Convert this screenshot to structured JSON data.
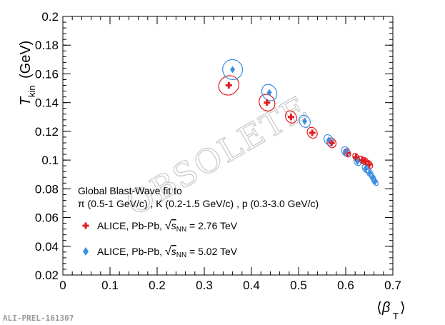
{
  "chart_data": {
    "type": "scatter",
    "xlabel": "⟨β_T⟩",
    "ylabel": "T_kin (GeV)",
    "xlim": [
      0,
      0.7
    ],
    "ylim": [
      0.02,
      0.2
    ],
    "x_ticks": [
      0,
      0.1,
      0.2,
      0.3,
      0.4,
      0.5,
      0.6,
      0.7
    ],
    "y_ticks": [
      0.02,
      0.04,
      0.06,
      0.08,
      0.1,
      0.12,
      0.14,
      0.16,
      0.18,
      0.2
    ],
    "x_tick_labels": [
      "0",
      "0.1",
      "0.2",
      "0.3",
      "0.4",
      "0.5",
      "0.6",
      "0.7"
    ],
    "y_tick_labels": [
      "0.02",
      "0.04",
      "0.06",
      "0.08",
      "0.1",
      "0.12",
      "0.14",
      "0.16",
      "0.18",
      "0.2"
    ],
    "legend": {
      "title_line1": "Global Blast-Wave fit to",
      "title_line2": "π (0.5-1 GeV/c) , K (0.2-1.5 GeV/c) , p (0.3-3.0 GeV/c)",
      "entries": [
        "ALICE, Pb-Pb, √sNN = 2.76 TeV",
        "ALICE, Pb-Pb, √sNN = 5.02 TeV"
      ]
    },
    "annotations": {
      "watermark": "OBSOLETE",
      "preliminary_id": "ALI-PREL-161307"
    },
    "series": [
      {
        "name": "ALICE, Pb-Pb, √sNN = 2.76 TeV",
        "color": "#e31a1c",
        "marker": "cross",
        "points": [
          {
            "x": 0.352,
            "y": 0.152,
            "ex": 0.022,
            "ey": 0.0065
          },
          {
            "x": 0.433,
            "y": 0.14,
            "ex": 0.016,
            "ey": 0.006
          },
          {
            "x": 0.484,
            "y": 0.13,
            "ex": 0.011,
            "ey": 0.0045
          },
          {
            "x": 0.529,
            "y": 0.119,
            "ex": 0.01,
            "ey": 0.004
          },
          {
            "x": 0.57,
            "y": 0.112,
            "ex": 0.009,
            "ey": 0.0035
          },
          {
            "x": 0.603,
            "y": 0.105,
            "ex": 0.007,
            "ey": 0.003
          },
          {
            "x": 0.622,
            "y": 0.102,
            "ex": 0.006,
            "ey": 0.003
          },
          {
            "x": 0.635,
            "y": 0.1,
            "ex": 0.006,
            "ey": 0.003
          },
          {
            "x": 0.642,
            "y": 0.099,
            "ex": 0.006,
            "ey": 0.003
          },
          {
            "x": 0.65,
            "y": 0.097,
            "ex": 0.006,
            "ey": 0.003
          }
        ]
      },
      {
        "name": "ALICE, Pb-Pb, √sNN = 5.02 TeV",
        "color": "#3a8fe0",
        "marker": "diamond",
        "points": [
          {
            "x": 0.36,
            "y": 0.163,
            "ex": 0.021,
            "ey": 0.007
          },
          {
            "x": 0.438,
            "y": 0.147,
            "ex": 0.015,
            "ey": 0.006
          },
          {
            "x": 0.513,
            "y": 0.127,
            "ex": 0.011,
            "ey": 0.0045
          },
          {
            "x": 0.564,
            "y": 0.114,
            "ex": 0.009,
            "ey": 0.004
          },
          {
            "x": 0.6,
            "y": 0.106,
            "ex": 0.008,
            "ey": 0.0035
          },
          {
            "x": 0.625,
            "y": 0.099,
            "ex": 0.007,
            "ey": 0.003
          },
          {
            "x": 0.642,
            "y": 0.094,
            "ex": 0.006,
            "ey": 0.003
          },
          {
            "x": 0.651,
            "y": 0.091,
            "ex": 0.006,
            "ey": 0.003
          },
          {
            "x": 0.657,
            "y": 0.088,
            "ex": 0.005,
            "ey": 0.003
          },
          {
            "x": 0.662,
            "y": 0.085,
            "ex": 0.005,
            "ey": 0.003
          }
        ]
      }
    ]
  }
}
